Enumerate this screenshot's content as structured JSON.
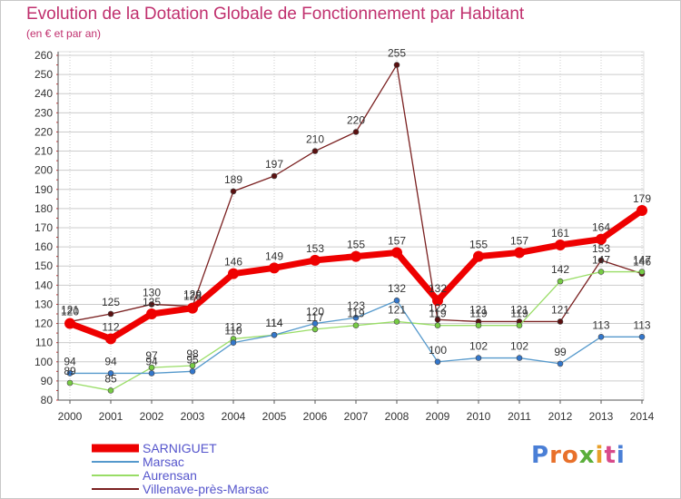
{
  "title": "Evolution de la Dotation Globale de Fonctionnement par Habitant",
  "subtitle": "(en € et par an)",
  "logo": "Proxiti",
  "colors": {
    "title": "#c0306e",
    "grid": "#cccccc",
    "axis": "#555555",
    "legend_text": "#5555cc"
  },
  "chart_data": {
    "type": "line",
    "title": "Evolution de la Dotation Globale de Fonctionnement par Habitant",
    "subtitle": "(en € et par an)",
    "xlabel": "",
    "ylabel": "",
    "ylim": [
      80,
      260
    ],
    "yticks": [
      80,
      90,
      100,
      110,
      120,
      130,
      140,
      150,
      160,
      170,
      180,
      190,
      200,
      210,
      220,
      230,
      240,
      250,
      260
    ],
    "grid": true,
    "legend": "bottom-left",
    "categories": [
      "2000",
      "2001",
      "2002",
      "2003",
      "2004",
      "2005",
      "2006",
      "2007",
      "2008",
      "2009",
      "2010",
      "2011",
      "2012",
      "2013",
      "2014"
    ],
    "series": [
      {
        "name": "Villenave-près-Marsac",
        "color": "#7a2020",
        "marker": "#5a1010",
        "values": [
          121,
          125,
          130,
          129,
          189,
          197,
          210,
          220,
          255,
          122,
          121,
          121,
          121,
          153,
          146
        ]
      },
      {
        "name": "Aurensan",
        "color": "#99dd66",
        "marker": "#77cc44",
        "values": [
          89,
          85,
          97,
          98,
          112,
          114,
          117,
          119,
          121,
          119,
          119,
          119,
          142,
          147,
          147
        ]
      },
      {
        "name": "Marsac",
        "color": "#5599cc",
        "marker": "#3377cc",
        "values": [
          94,
          94,
          94,
          95,
          110,
          114,
          120,
          123,
          132,
          100,
          102,
          102,
          99,
          113,
          113
        ]
      },
      {
        "name": "SARNIGUET",
        "color": "#ee0000",
        "marker": "#ee0000",
        "values": [
          120,
          112,
          125,
          128,
          146,
          149,
          153,
          155,
          157,
          132,
          155,
          157,
          161,
          164,
          179
        ]
      }
    ]
  }
}
